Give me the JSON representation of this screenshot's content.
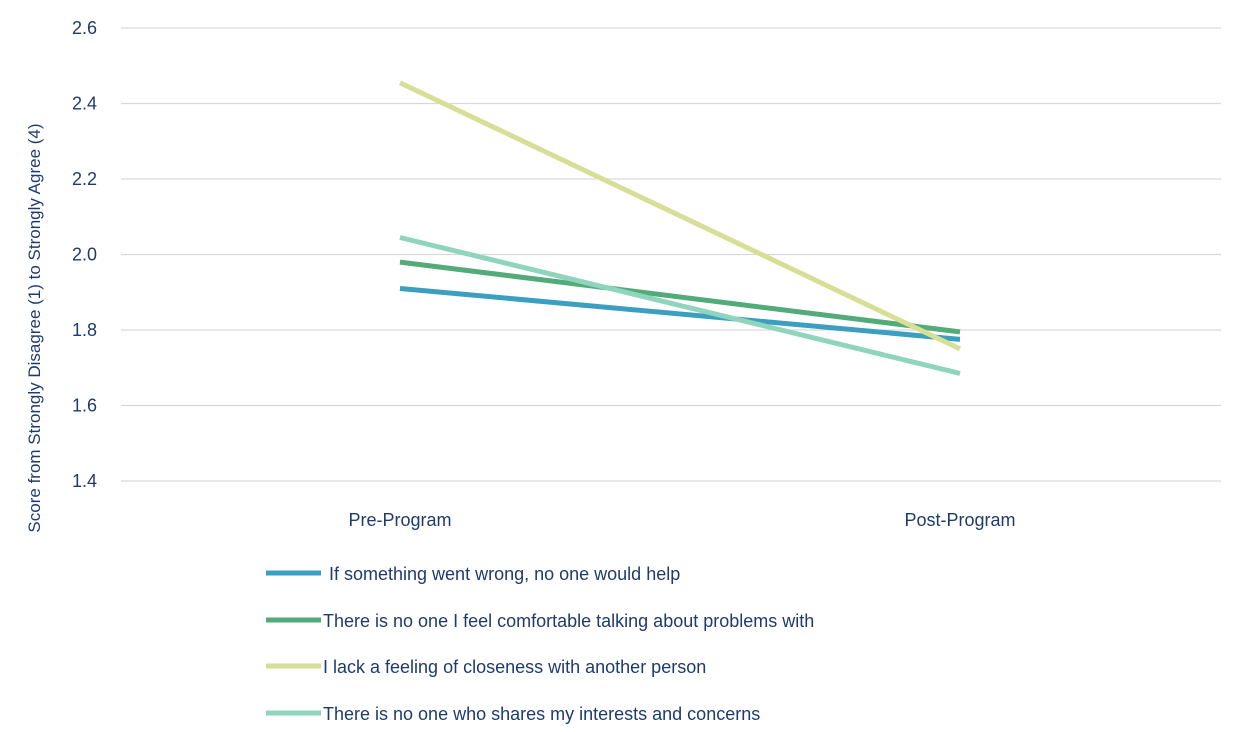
{
  "chart_data": {
    "type": "line",
    "title": "",
    "xlabel": "",
    "ylabel": "Score  from Strongly Disagree (1) to Strongly Agree (4)",
    "categories": [
      "Pre-Program",
      "Post-Program"
    ],
    "ylim": [
      1.4,
      2.6
    ],
    "yticks": [
      "1.4",
      "1.6",
      "1.8",
      "2.0",
      "2.2",
      "2.4",
      "2.6"
    ],
    "grid": true,
    "legend_position": "bottom",
    "series": [
      {
        "name": "If something went wrong, no one would help",
        "color": "#3a9fc0",
        "values": [
          1.91,
          1.775
        ]
      },
      {
        "name": "There is no one I feel comfortable talking about problems with",
        "color": "#52ab78",
        "values": [
          1.98,
          1.795
        ]
      },
      {
        "name": "I lack a feeling of closeness with another person",
        "color": "#d6df95",
        "values": [
          2.455,
          1.75
        ]
      },
      {
        "name": "There is no one who shares my interests and concerns",
        "color": "#8fd4bd",
        "values": [
          2.045,
          1.685
        ]
      }
    ]
  }
}
